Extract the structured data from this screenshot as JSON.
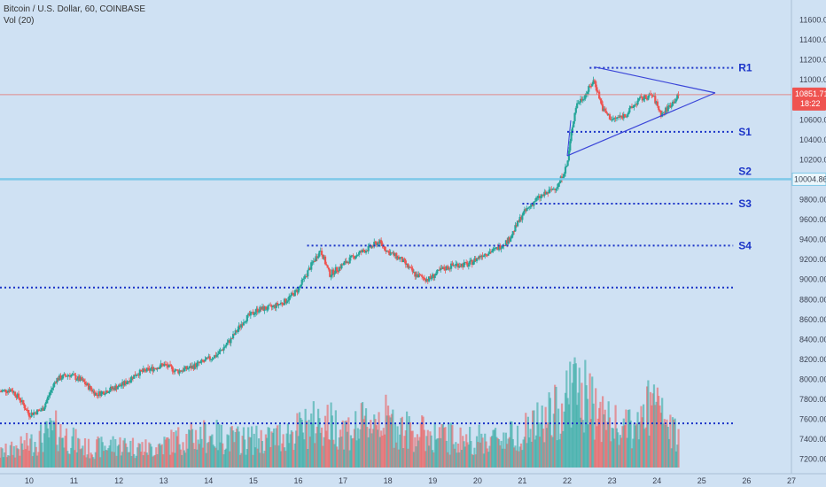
{
  "header": {
    "symbol": "Bitcoin / U.S. Dollar, 60, COINBASE",
    "indicator": "Vol (20)"
  },
  "colors": {
    "background": "#cfe1f3",
    "bull": "#26a69a",
    "bear": "#ef5350",
    "level_line": "#1b34c8",
    "triangle": "#3a45d8",
    "price_line": "#e57373",
    "s2_line": "#7ec8e8"
  },
  "chart_data": {
    "type": "candlestick",
    "symbol": "Bitcoin / U.S. Dollar",
    "interval": "60",
    "exchange": "COINBASE",
    "indicator": "Vol (20)",
    "ylim": [
      7100,
      11800
    ],
    "xlim": [
      9.35,
      27.0
    ],
    "y_ticks": [
      "7200.00",
      "7400.00",
      "7600.00",
      "7800.00",
      "8000.00",
      "8200.00",
      "8400.00",
      "8600.00",
      "8800.00",
      "9000.00",
      "9200.00",
      "9400.00",
      "9600.00",
      "9800.00",
      "10000.00",
      "10200.00",
      "10400.00",
      "10600.00",
      "10800.00",
      "11000.00",
      "11200.00",
      "11400.00",
      "11600.00"
    ],
    "x_ticks": [
      {
        "label": "10",
        "x": 10
      },
      {
        "label": "11",
        "x": 11
      },
      {
        "label": "12",
        "x": 12
      },
      {
        "label": "13",
        "x": 13
      },
      {
        "label": "14",
        "x": 14
      },
      {
        "label": "15",
        "x": 15
      },
      {
        "label": "16",
        "x": 16
      },
      {
        "label": "17",
        "x": 17
      },
      {
        "label": "18",
        "x": 18
      },
      {
        "label": "19",
        "x": 19
      },
      {
        "label": "20",
        "x": 20
      },
      {
        "label": "21",
        "x": 21
      },
      {
        "label": "22",
        "x": 22
      },
      {
        "label": "23",
        "x": 23
      },
      {
        "label": "24",
        "x": 24
      },
      {
        "label": "25",
        "x": 25
      },
      {
        "label": "26",
        "x": 26
      },
      {
        "label": "27",
        "x": 27
      }
    ],
    "price_path": [
      [
        9.35,
        7880
      ],
      [
        9.6,
        7900
      ],
      [
        9.8,
        7800
      ],
      [
        10.0,
        7650
      ],
      [
        10.3,
        7700
      ],
      [
        10.6,
        8000
      ],
      [
        10.9,
        8050
      ],
      [
        11.2,
        7980
      ],
      [
        11.5,
        7850
      ],
      [
        11.8,
        7900
      ],
      [
        12.1,
        7950
      ],
      [
        12.4,
        8060
      ],
      [
        12.7,
        8100
      ],
      [
        13.0,
        8150
      ],
      [
        13.3,
        8080
      ],
      [
        13.6,
        8120
      ],
      [
        13.9,
        8180
      ],
      [
        14.2,
        8250
      ],
      [
        14.5,
        8400
      ],
      [
        14.8,
        8600
      ],
      [
        15.1,
        8700
      ],
      [
        15.4,
        8720
      ],
      [
        15.7,
        8780
      ],
      [
        16.0,
        8900
      ],
      [
        16.3,
        9150
      ],
      [
        16.5,
        9300
      ],
      [
        16.7,
        9050
      ],
      [
        17.0,
        9150
      ],
      [
        17.3,
        9250
      ],
      [
        17.6,
        9320
      ],
      [
        17.8,
        9380
      ],
      [
        18.0,
        9280
      ],
      [
        18.3,
        9200
      ],
      [
        18.6,
        9050
      ],
      [
        18.9,
        9000
      ],
      [
        19.2,
        9100
      ],
      [
        19.5,
        9150
      ],
      [
        19.8,
        9150
      ],
      [
        20.1,
        9250
      ],
      [
        20.4,
        9300
      ],
      [
        20.7,
        9400
      ],
      [
        21.0,
        9650
      ],
      [
        21.3,
        9800
      ],
      [
        21.6,
        9880
      ],
      [
        21.8,
        9950
      ],
      [
        22.0,
        10150
      ],
      [
        22.1,
        10500
      ],
      [
        22.2,
        10750
      ],
      [
        22.4,
        10850
      ],
      [
        22.6,
        11000
      ],
      [
        22.8,
        10700
      ],
      [
        23.0,
        10600
      ],
      [
        23.3,
        10650
      ],
      [
        23.6,
        10800
      ],
      [
        23.9,
        10850
      ],
      [
        24.1,
        10650
      ],
      [
        24.3,
        10750
      ],
      [
        24.5,
        10852
      ]
    ],
    "volume_profile": [
      [
        9.35,
        0.15
      ],
      [
        10.0,
        0.25
      ],
      [
        10.6,
        0.4
      ],
      [
        11.3,
        0.2
      ],
      [
        12.0,
        0.25
      ],
      [
        12.7,
        0.2
      ],
      [
        13.3,
        0.3
      ],
      [
        14.0,
        0.35
      ],
      [
        14.6,
        0.3
      ],
      [
        15.3,
        0.3
      ],
      [
        16.0,
        0.4
      ],
      [
        16.5,
        0.5
      ],
      [
        17.2,
        0.4
      ],
      [
        17.8,
        0.55
      ],
      [
        18.4,
        0.4
      ],
      [
        19.0,
        0.35
      ],
      [
        19.6,
        0.3
      ],
      [
        20.2,
        0.3
      ],
      [
        20.8,
        0.35
      ],
      [
        21.3,
        0.45
      ],
      [
        21.8,
        0.6
      ],
      [
        22.1,
        0.9
      ],
      [
        22.5,
        0.7
      ],
      [
        23.0,
        0.45
      ],
      [
        23.5,
        0.4
      ],
      [
        23.9,
        0.7
      ],
      [
        24.3,
        0.4
      ],
      [
        24.5,
        0.3
      ]
    ],
    "volume_ylim": [
      0,
      1
    ],
    "current_price": "10851.71",
    "countdown": "18:22",
    "levels": [
      {
        "name": "R1",
        "value": 11120,
        "x_start": 22.5,
        "x_end": 25.7
      },
      {
        "name": "S1",
        "value": 10480,
        "x_start": 22.0,
        "x_end": 25.7
      },
      {
        "name": "S2",
        "value": 10004.86,
        "tag": "10004.86",
        "x_start": 9.35,
        "x_end": 27.0
      },
      {
        "name": "S3",
        "value": 9760,
        "x_start": 21.0,
        "x_end": 25.7
      },
      {
        "name": "S4",
        "value": 9340,
        "x_start": 16.2,
        "x_end": 25.7
      },
      {
        "name": "",
        "value": 8920,
        "x_start": 9.35,
        "x_end": 25.7
      },
      {
        "name": "",
        "value": 7560,
        "x_start": 9.35,
        "x_end": 25.7
      }
    ],
    "triangle": {
      "upper": [
        [
          22.6,
          11130
        ],
        [
          25.3,
          10870
        ]
      ],
      "lower": [
        [
          22.0,
          10240
        ],
        [
          25.3,
          10870
        ]
      ]
    }
  }
}
